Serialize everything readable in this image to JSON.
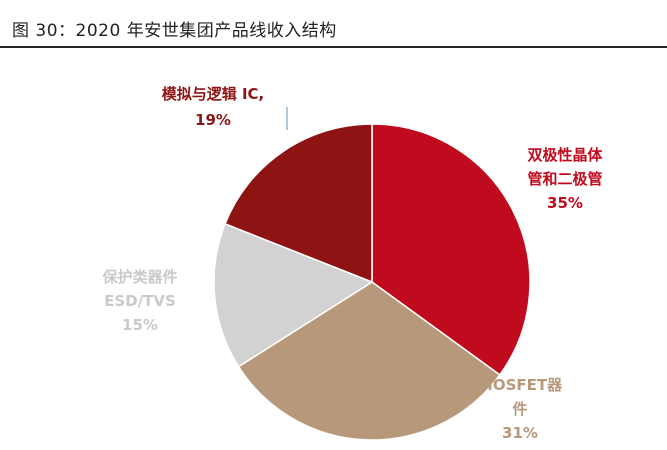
{
  "figure": {
    "title": "图 30：2020 年安世集团产品线收入结构"
  },
  "chart_data": {
    "type": "pie",
    "title": "",
    "slices": [
      {
        "label_lines": [
          "双极性晶体",
          "管和二极管"
        ],
        "pct_text": "35%",
        "value": 35,
        "color": "#C00A1E",
        "label_color": "#C00A1E"
      },
      {
        "label_lines": [
          "MOSFET器",
          "件"
        ],
        "pct_text": "31%",
        "value": 31,
        "color": "#B7987A",
        "label_color": "#B7987A"
      },
      {
        "label_lines": [
          "保护类器件",
          "ESD/TVS"
        ],
        "pct_text": "15%",
        "value": 15,
        "color": "#D2D2D2",
        "label_color": "#CACACA"
      },
      {
        "label_lines": [
          "模拟与逻辑 IC,"
        ],
        "pct_text": "19%",
        "value": 19,
        "color": "#8E1414",
        "label_color": "#8E1414"
      }
    ]
  }
}
